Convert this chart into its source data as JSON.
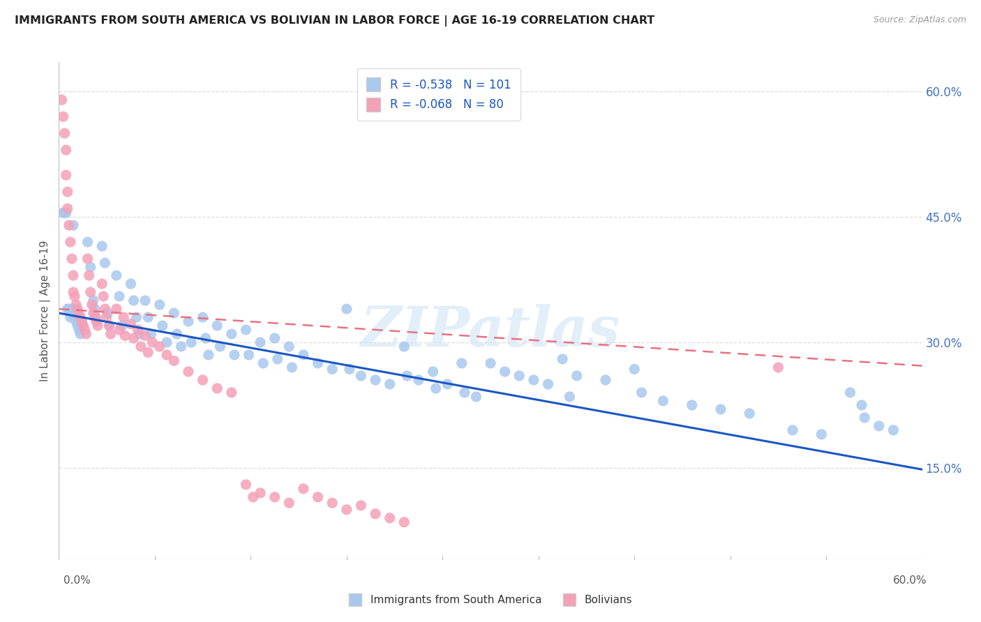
{
  "title": "IMMIGRANTS FROM SOUTH AMERICA VS BOLIVIAN IN LABOR FORCE | AGE 16-19 CORRELATION CHART",
  "source": "Source: ZipAtlas.com",
  "ylabel": "In Labor Force | Age 16-19",
  "right_yticks": [
    0.15,
    0.3,
    0.45,
    0.6
  ],
  "right_yticklabels": [
    "15.0%",
    "30.0%",
    "45.0%",
    "60.0%"
  ],
  "xmin": 0.0,
  "xmax": 0.6,
  "ymin": 0.04,
  "ymax": 0.635,
  "blue_R": "-0.538",
  "blue_N": "101",
  "pink_R": "-0.068",
  "pink_N": "80",
  "blue_trend_x": [
    0.0,
    0.6
  ],
  "blue_trend_y": [
    0.335,
    0.148
  ],
  "pink_trend_x": [
    0.0,
    0.6
  ],
  "pink_trend_y": [
    0.34,
    0.272
  ],
  "blue_color": "#A8C8EE",
  "pink_color": "#F4A0B8",
  "blue_line_color": "#1A56C4",
  "pink_line_color": "#E87080",
  "background_color": "#FFFFFF",
  "grid_color": "#DDDDDD",
  "title_color": "#222222",
  "legend_label_blue": "Immigrants from South America",
  "legend_label_pink": "Bolivians",
  "watermark": "ZIPatlas",
  "blue_scatter_x": [
    0.003,
    0.004,
    0.005,
    0.006,
    0.007,
    0.008,
    0.01,
    0.01,
    0.011,
    0.012,
    0.013,
    0.014,
    0.015,
    0.02,
    0.022,
    0.024,
    0.025,
    0.026,
    0.03,
    0.032,
    0.034,
    0.035,
    0.04,
    0.042,
    0.044,
    0.05,
    0.052,
    0.054,
    0.056,
    0.06,
    0.062,
    0.064,
    0.07,
    0.072,
    0.075,
    0.08,
    0.082,
    0.085,
    0.09,
    0.092,
    0.1,
    0.102,
    0.104,
    0.11,
    0.112,
    0.12,
    0.122,
    0.13,
    0.132,
    0.14,
    0.142,
    0.15,
    0.152,
    0.16,
    0.162,
    0.17,
    0.18,
    0.19,
    0.2,
    0.202,
    0.21,
    0.22,
    0.23,
    0.24,
    0.242,
    0.25,
    0.26,
    0.262,
    0.27,
    0.28,
    0.282,
    0.29,
    0.3,
    0.31,
    0.32,
    0.33,
    0.34,
    0.35,
    0.355,
    0.36,
    0.38,
    0.4,
    0.405,
    0.42,
    0.44,
    0.46,
    0.48,
    0.51,
    0.53,
    0.55,
    0.558,
    0.56,
    0.57,
    0.58
  ],
  "blue_scatter_y": [
    0.455,
    0.455,
    0.455,
    0.34,
    0.34,
    0.33,
    0.44,
    0.34,
    0.33,
    0.325,
    0.32,
    0.315,
    0.31,
    0.42,
    0.39,
    0.35,
    0.34,
    0.33,
    0.415,
    0.395,
    0.335,
    0.32,
    0.38,
    0.355,
    0.32,
    0.37,
    0.35,
    0.33,
    0.31,
    0.35,
    0.33,
    0.31,
    0.345,
    0.32,
    0.3,
    0.335,
    0.31,
    0.295,
    0.325,
    0.3,
    0.33,
    0.305,
    0.285,
    0.32,
    0.295,
    0.31,
    0.285,
    0.315,
    0.285,
    0.3,
    0.275,
    0.305,
    0.28,
    0.295,
    0.27,
    0.285,
    0.275,
    0.268,
    0.34,
    0.268,
    0.26,
    0.255,
    0.25,
    0.295,
    0.26,
    0.255,
    0.265,
    0.245,
    0.25,
    0.275,
    0.24,
    0.235,
    0.275,
    0.265,
    0.26,
    0.255,
    0.25,
    0.28,
    0.235,
    0.26,
    0.255,
    0.268,
    0.24,
    0.23,
    0.225,
    0.22,
    0.215,
    0.195,
    0.19,
    0.24,
    0.225,
    0.21,
    0.2,
    0.195
  ],
  "pink_scatter_x": [
    0.002,
    0.003,
    0.004,
    0.005,
    0.005,
    0.006,
    0.006,
    0.007,
    0.008,
    0.009,
    0.01,
    0.01,
    0.011,
    0.012,
    0.013,
    0.014,
    0.015,
    0.016,
    0.017,
    0.018,
    0.019,
    0.02,
    0.021,
    0.022,
    0.023,
    0.024,
    0.025,
    0.026,
    0.027,
    0.03,
    0.031,
    0.032,
    0.033,
    0.035,
    0.036,
    0.04,
    0.042,
    0.045,
    0.046,
    0.05,
    0.052,
    0.055,
    0.057,
    0.06,
    0.062,
    0.065,
    0.07,
    0.075,
    0.08,
    0.09,
    0.1,
    0.11,
    0.12,
    0.13,
    0.135,
    0.14,
    0.15,
    0.16,
    0.17,
    0.18,
    0.19,
    0.2,
    0.21,
    0.22,
    0.23,
    0.24,
    0.5
  ],
  "pink_scatter_y": [
    0.59,
    0.57,
    0.55,
    0.53,
    0.5,
    0.48,
    0.46,
    0.44,
    0.42,
    0.4,
    0.38,
    0.36,
    0.355,
    0.345,
    0.34,
    0.335,
    0.33,
    0.325,
    0.32,
    0.315,
    0.31,
    0.4,
    0.38,
    0.36,
    0.345,
    0.335,
    0.33,
    0.325,
    0.32,
    0.37,
    0.355,
    0.34,
    0.33,
    0.32,
    0.31,
    0.34,
    0.315,
    0.33,
    0.308,
    0.322,
    0.305,
    0.315,
    0.295,
    0.308,
    0.288,
    0.3,
    0.295,
    0.285,
    0.278,
    0.265,
    0.255,
    0.245,
    0.24,
    0.13,
    0.115,
    0.12,
    0.115,
    0.108,
    0.125,
    0.115,
    0.108,
    0.1,
    0.105,
    0.095,
    0.09,
    0.085,
    0.27
  ]
}
